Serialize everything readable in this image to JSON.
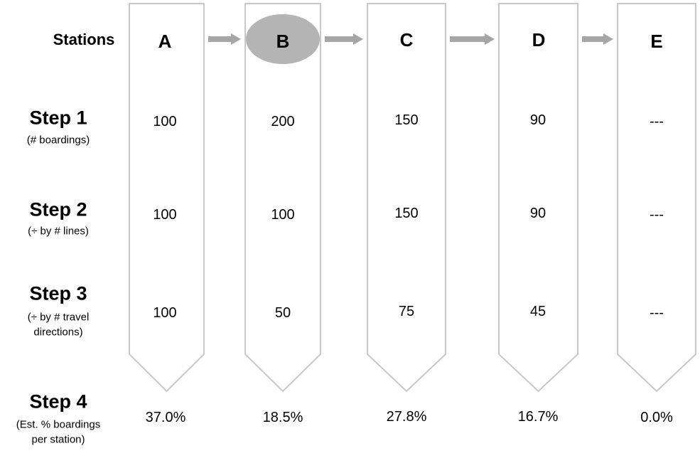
{
  "colors": {
    "outline": "#c8c8c8",
    "arrow": "#a6a6a6",
    "highlight": "#b4b4b4",
    "text": "#000000"
  },
  "row_header": "Stations",
  "steps": [
    {
      "title": "Step 1",
      "note_lines": [
        "(# boardings)"
      ]
    },
    {
      "title": "Step 2",
      "note_lines": [
        "(÷ by # lines)"
      ]
    },
    {
      "title": "Step 3",
      "note_lines": [
        "(÷ by # travel",
        "directions)"
      ]
    },
    {
      "title": "Step 4",
      "note_lines": [
        "(Est. % boardings",
        "per station)"
      ]
    }
  ],
  "stations": [
    {
      "label": "A",
      "highlighted": false,
      "values": [
        "100",
        "100",
        "100"
      ],
      "percent": "37.0%"
    },
    {
      "label": "B",
      "highlighted": true,
      "values": [
        "200",
        "100",
        "50"
      ],
      "percent": "18.5%"
    },
    {
      "label": "C",
      "highlighted": false,
      "values": [
        "150",
        "150",
        "75"
      ],
      "percent": "27.8%"
    },
    {
      "label": "D",
      "highlighted": false,
      "values": [
        "90",
        "90",
        "45"
      ],
      "percent": "16.7%"
    },
    {
      "label": "E",
      "highlighted": false,
      "values": [
        "---",
        "---",
        "---"
      ],
      "percent": "0.0%"
    }
  ],
  "connectors": [
    {
      "from": "A",
      "to": "B"
    },
    {
      "from": "B",
      "to": "C"
    },
    {
      "from": "C",
      "to": "D"
    },
    {
      "from": "D",
      "to": "E"
    }
  ]
}
